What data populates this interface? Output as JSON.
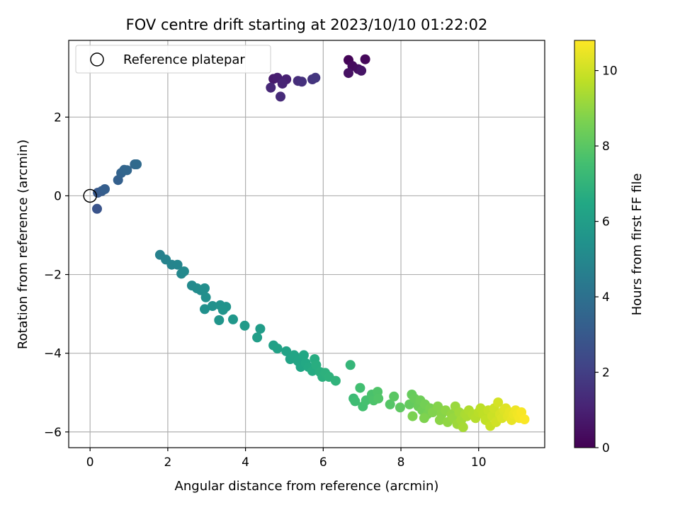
{
  "chart_data": {
    "type": "scatter",
    "title": "FOV centre drift starting at 2023/10/10 01:22:02",
    "xlabel": "Angular distance from reference (arcmin)",
    "ylabel": "Rotation from reference (arcmin)",
    "xlim": [
      -0.55,
      11.7
    ],
    "ylim": [
      -6.4,
      3.95
    ],
    "x_ticks": [
      0,
      2,
      4,
      6,
      8,
      10
    ],
    "y_ticks": [
      -6,
      -4,
      -2,
      0,
      2
    ],
    "grid": true,
    "legend": {
      "location": "top-left",
      "entries": [
        "Reference platepar"
      ]
    },
    "reference_point": {
      "x": 0.0,
      "y": 0.0
    },
    "colorbar": {
      "label": "Hours from first FF file",
      "colormap": "viridis",
      "range": [
        0,
        10.8
      ],
      "ticks": [
        0,
        2,
        4,
        6,
        8,
        10
      ]
    },
    "points": [
      [
        6.65,
        3.45,
        0.1
      ],
      [
        7.08,
        3.47,
        0.2
      ],
      [
        6.75,
        3.3,
        0.3
      ],
      [
        6.9,
        3.22,
        0.4
      ],
      [
        6.65,
        3.12,
        0.5
      ],
      [
        6.98,
        3.18,
        0.6
      ],
      [
        4.72,
        2.97,
        0.8
      ],
      [
        4.82,
        3.0,
        0.9
      ],
      [
        5.05,
        2.96,
        1.0
      ],
      [
        4.95,
        2.85,
        1.1
      ],
      [
        4.65,
        2.75,
        1.2
      ],
      [
        4.9,
        2.52,
        1.3
      ],
      [
        5.35,
        2.92,
        1.4
      ],
      [
        5.45,
        2.9,
        1.5
      ],
      [
        5.72,
        2.96,
        1.6
      ],
      [
        5.8,
        3.0,
        1.7
      ],
      [
        0.18,
        -0.33,
        2.8
      ],
      [
        0.2,
        0.08,
        3.0
      ],
      [
        0.3,
        0.12,
        3.1
      ],
      [
        0.38,
        0.17,
        3.2
      ],
      [
        0.72,
        0.4,
        3.3
      ],
      [
        0.8,
        0.58,
        3.4
      ],
      [
        0.88,
        0.66,
        3.5
      ],
      [
        0.95,
        0.65,
        3.55
      ],
      [
        1.15,
        0.8,
        3.6
      ],
      [
        1.2,
        0.8,
        3.7
      ],
      [
        1.8,
        -1.5,
        4.7
      ],
      [
        1.95,
        -1.62,
        4.8
      ],
      [
        2.1,
        -1.75,
        4.85
      ],
      [
        2.25,
        -1.75,
        4.9
      ],
      [
        2.35,
        -1.98,
        5.0
      ],
      [
        2.42,
        -1.92,
        5.05
      ],
      [
        2.62,
        -2.28,
        5.1
      ],
      [
        2.75,
        -2.35,
        5.15
      ],
      [
        2.85,
        -2.4,
        5.2
      ],
      [
        2.95,
        -2.35,
        5.25
      ],
      [
        2.98,
        -2.58,
        5.3
      ],
      [
        2.95,
        -2.88,
        5.35
      ],
      [
        3.15,
        -2.8,
        5.4
      ],
      [
        3.35,
        -2.78,
        5.45
      ],
      [
        3.5,
        -2.82,
        5.5
      ],
      [
        3.42,
        -2.9,
        5.55
      ],
      [
        3.32,
        -3.16,
        5.6
      ],
      [
        3.68,
        -3.14,
        5.7
      ],
      [
        3.98,
        -3.3,
        5.8
      ],
      [
        4.38,
        -3.38,
        5.9
      ],
      [
        4.3,
        -3.6,
        6.0
      ],
      [
        4.72,
        -3.8,
        6.1
      ],
      [
        4.82,
        -3.88,
        6.15
      ],
      [
        5.05,
        -3.95,
        6.2
      ],
      [
        5.15,
        -4.15,
        6.25
      ],
      [
        5.25,
        -4.05,
        6.3
      ],
      [
        5.35,
        -4.2,
        6.35
      ],
      [
        5.42,
        -4.35,
        6.4
      ],
      [
        5.5,
        -4.05,
        6.45
      ],
      [
        5.55,
        -4.25,
        6.5
      ],
      [
        5.62,
        -4.35,
        6.55
      ],
      [
        5.72,
        -4.45,
        6.6
      ],
      [
        5.78,
        -4.15,
        6.65
      ],
      [
        5.82,
        -4.3,
        6.7
      ],
      [
        5.92,
        -4.48,
        6.75
      ],
      [
        5.98,
        -4.6,
        6.8
      ],
      [
        6.05,
        -4.5,
        6.85
      ],
      [
        6.15,
        -4.6,
        6.9
      ],
      [
        6.32,
        -4.7,
        6.95
      ],
      [
        6.7,
        -4.3,
        7.1
      ],
      [
        6.78,
        -5.15,
        7.3
      ],
      [
        6.82,
        -5.22,
        7.4
      ],
      [
        6.95,
        -4.88,
        7.5
      ],
      [
        7.02,
        -5.35,
        7.55
      ],
      [
        7.1,
        -5.2,
        7.6
      ],
      [
        7.25,
        -5.05,
        7.7
      ],
      [
        7.3,
        -5.2,
        7.75
      ],
      [
        7.4,
        -4.98,
        7.8
      ],
      [
        7.42,
        -5.15,
        7.85
      ],
      [
        7.72,
        -5.3,
        7.9
      ],
      [
        7.82,
        -5.1,
        8.0
      ],
      [
        7.98,
        -5.38,
        8.1
      ],
      [
        8.22,
        -5.3,
        8.2
      ],
      [
        8.28,
        -5.05,
        8.25
      ],
      [
        8.35,
        -5.15,
        8.3
      ],
      [
        8.45,
        -5.35,
        8.35
      ],
      [
        8.5,
        -5.2,
        8.4
      ],
      [
        8.55,
        -5.45,
        8.45
      ],
      [
        8.62,
        -5.3,
        8.5
      ],
      [
        8.68,
        -5.55,
        8.55
      ],
      [
        8.75,
        -5.4,
        8.6
      ],
      [
        8.3,
        -5.6,
        8.65
      ],
      [
        8.6,
        -5.65,
        8.7
      ],
      [
        8.82,
        -5.5,
        8.75
      ],
      [
        8.95,
        -5.35,
        8.8
      ],
      [
        9.05,
        -5.55,
        8.85
      ],
      [
        9.0,
        -5.7,
        8.9
      ],
      [
        9.15,
        -5.45,
        8.95
      ],
      [
        9.2,
        -5.75,
        9.0
      ],
      [
        9.3,
        -5.55,
        9.05
      ],
      [
        9.35,
        -5.65,
        9.1
      ],
      [
        9.4,
        -5.35,
        9.15
      ],
      [
        9.45,
        -5.8,
        9.2
      ],
      [
        9.5,
        -5.5,
        9.25
      ],
      [
        9.55,
        -5.7,
        9.3
      ],
      [
        9.6,
        -5.88,
        9.35
      ],
      [
        9.65,
        -5.55,
        9.4
      ],
      [
        9.7,
        -5.6,
        9.45
      ],
      [
        9.75,
        -5.45,
        9.5
      ],
      [
        9.85,
        -5.55,
        9.55
      ],
      [
        9.92,
        -5.65,
        9.6
      ],
      [
        10.0,
        -5.5,
        9.65
      ],
      [
        10.05,
        -5.4,
        9.7
      ],
      [
        10.12,
        -5.55,
        9.75
      ],
      [
        10.18,
        -5.7,
        9.8
      ],
      [
        10.25,
        -5.45,
        9.85
      ],
      [
        10.3,
        -5.85,
        9.9
      ],
      [
        10.35,
        -5.6,
        9.95
      ],
      [
        10.4,
        -5.4,
        10.0
      ],
      [
        10.45,
        -5.75,
        10.05
      ],
      [
        10.5,
        -5.25,
        10.1
      ],
      [
        10.55,
        -5.55,
        10.15
      ],
      [
        10.6,
        -5.65,
        10.2
      ],
      [
        10.65,
        -5.45,
        10.25
      ],
      [
        10.7,
        -5.4,
        10.3
      ],
      [
        10.75,
        -5.6,
        10.35
      ],
      [
        10.8,
        -5.5,
        10.4
      ],
      [
        10.85,
        -5.7,
        10.45
      ],
      [
        10.9,
        -5.55,
        10.5
      ],
      [
        10.95,
        -5.45,
        10.55
      ],
      [
        11.0,
        -5.55,
        10.6
      ],
      [
        11.05,
        -5.65,
        10.65
      ],
      [
        11.1,
        -5.5,
        10.7
      ],
      [
        11.18,
        -5.68,
        10.75
      ]
    ]
  }
}
